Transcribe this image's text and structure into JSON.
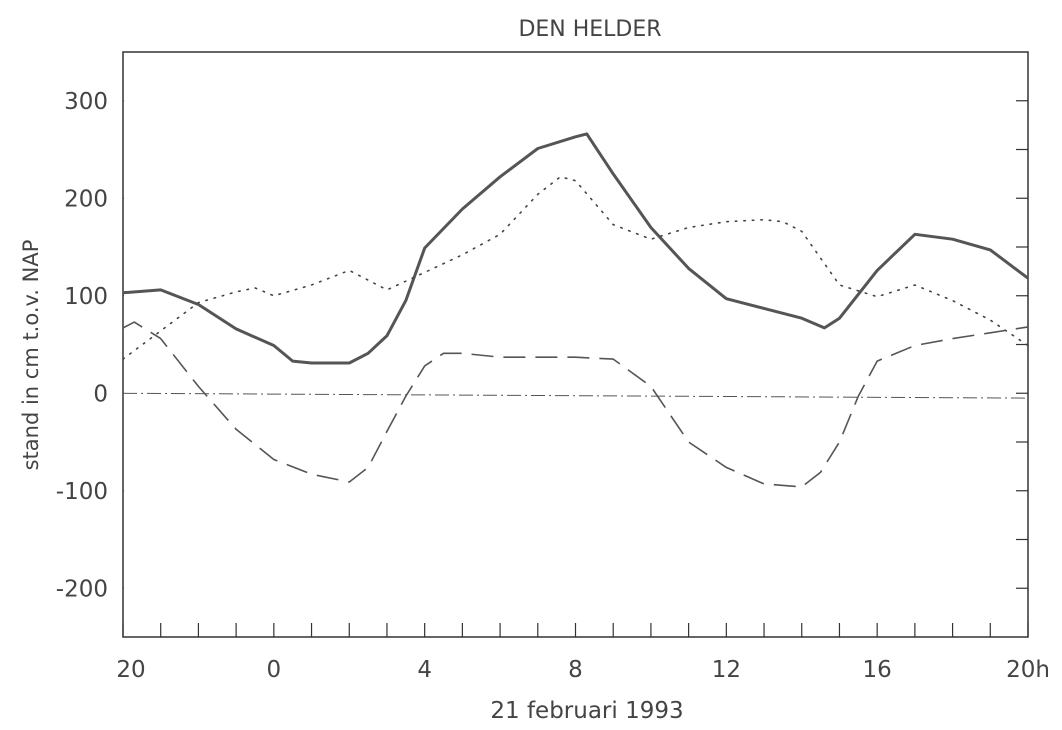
{
  "chart_data": {
    "type": "line",
    "title": "DEN HELDER",
    "y_label": "stand in cm t.o.v. NAP",
    "x_label": "21 februari 1993",
    "xlim": [
      -4,
      20
    ],
    "ylim": [
      -250,
      350
    ],
    "xticks": [
      {
        "value": -4,
        "label": "20"
      },
      0,
      4,
      8,
      12,
      16,
      {
        "value": 20,
        "label": "20h"
      }
    ],
    "xminorticks": [
      -3,
      -2,
      -1,
      1,
      2,
      3,
      5,
      6,
      7,
      9,
      10,
      11,
      13,
      14,
      15,
      17,
      18,
      19
    ],
    "yticks": [
      -200,
      -100,
      0,
      100,
      200,
      300
    ],
    "yminorticks": [
      -200,
      -150,
      -100,
      -50,
      0,
      50,
      100,
      150,
      200,
      250,
      300
    ],
    "series": [
      {
        "color": "#555555",
        "style": "solid",
        "width": 3,
        "x": [
          -4,
          -3,
          -2,
          -1,
          0,
          0.5,
          1,
          2,
          2.5,
          3,
          3.5,
          4,
          5,
          6,
          7,
          8,
          8.3,
          9,
          10,
          11,
          12,
          13,
          14,
          14.6,
          15,
          16,
          17,
          18,
          19,
          20
        ],
        "values": [
          103,
          106,
          91,
          66,
          49,
          33,
          31,
          31,
          41,
          59,
          95,
          149,
          189,
          222,
          251,
          263,
          266,
          225,
          170,
          128,
          97,
          87,
          77,
          67,
          77,
          126,
          163,
          158,
          147,
          118
        ]
      },
      {
        "color": "#444444",
        "style": "dotted",
        "width": 1.6,
        "x": [
          -4,
          -3,
          -2,
          -1,
          -0.5,
          0,
          1,
          2,
          3,
          4,
          5,
          6,
          7,
          7.6,
          8,
          9,
          10,
          11,
          12,
          13,
          13.5,
          14,
          15,
          16,
          17,
          18,
          19,
          20
        ],
        "values": [
          35,
          64,
          93,
          104,
          108,
          100,
          111,
          126,
          106,
          124,
          142,
          163,
          204,
          222,
          218,
          173,
          158,
          170,
          176,
          178,
          176,
          166,
          111,
          99,
          111,
          95,
          75,
          49
        ]
      },
      {
        "color": "#555555",
        "style": "dashed",
        "width": 1.6,
        "x": [
          -4,
          -3.7,
          -3,
          -2,
          -1,
          0,
          1,
          2,
          2.5,
          3,
          3.5,
          4,
          4.5,
          5,
          6,
          7,
          8,
          9,
          10,
          11,
          12,
          13,
          14,
          14.5,
          15,
          15.5,
          16,
          17,
          18,
          19,
          20
        ],
        "values": [
          67,
          73,
          56,
          7,
          -37,
          -68,
          -83,
          -91,
          -76,
          -39,
          -3,
          28,
          41,
          41,
          37,
          37,
          37,
          35,
          7,
          -50,
          -76,
          -93,
          -96,
          -81,
          -50,
          -3,
          33,
          49,
          56,
          62,
          68
        ]
      },
      {
        "color": "#555555",
        "style": "dashdot",
        "width": 1,
        "x": [
          -4,
          20
        ],
        "values": [
          0,
          -5
        ]
      }
    ]
  }
}
